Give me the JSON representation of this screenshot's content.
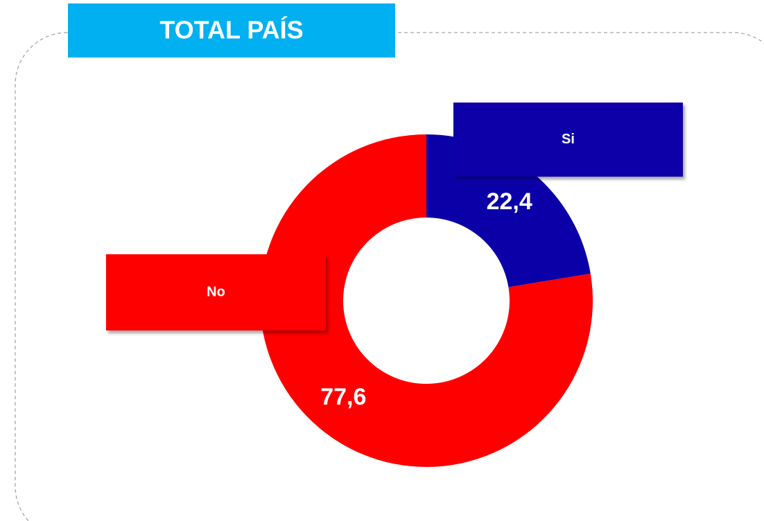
{
  "chart_data": {
    "type": "pie",
    "donut": true,
    "title": "TOTAL PAÍS",
    "categories": [
      "Si",
      "No"
    ],
    "values": [
      22.4,
      77.6
    ],
    "value_labels": [
      "22,4",
      "77,6"
    ],
    "colors": [
      "#0b00a8",
      "#ff0000"
    ]
  }
}
